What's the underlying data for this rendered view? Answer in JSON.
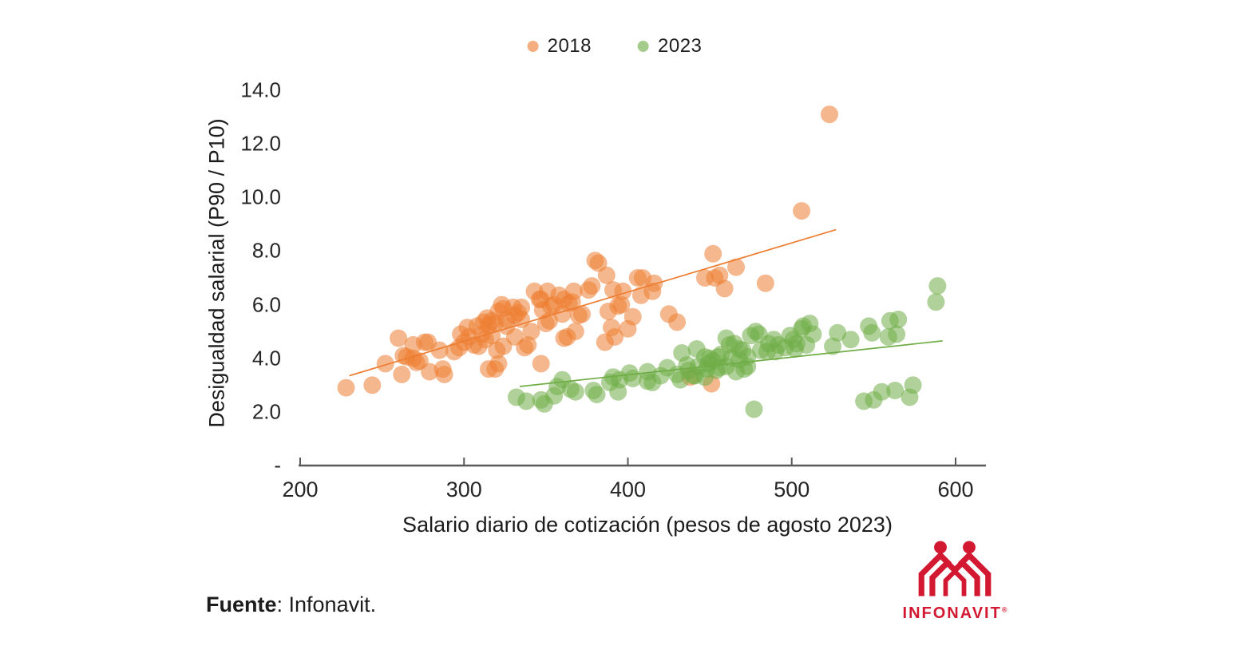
{
  "legend": {
    "items": [
      {
        "label": "2018",
        "color": "#ED7D31"
      },
      {
        "label": "2023",
        "color": "#70AD47"
      }
    ]
  },
  "chart_data": {
    "type": "scatter",
    "title": "",
    "xlabel": "Salario diario de cotización (pesos de agosto 2023)",
    "ylabel": "Desigualdad salarial (P90 / P10)",
    "xlim": [
      200,
      620
    ],
    "ylim": [
      0,
      14
    ],
    "grid": false,
    "legend_position": "top-center",
    "x_ticks": [
      {
        "label": "200",
        "value": 200
      },
      {
        "label": "300",
        "value": 300
      },
      {
        "label": "400",
        "value": 400
      },
      {
        "label": "500",
        "value": 500
      },
      {
        "label": "600",
        "value": 600
      }
    ],
    "y_ticks": [
      {
        "label": "14.0",
        "value": 14
      },
      {
        "label": "12.0",
        "value": 12
      },
      {
        "label": "10.0",
        "value": 10
      },
      {
        "label": "8.0",
        "value": 8
      },
      {
        "label": "6.0",
        "value": 6
      },
      {
        "label": "4.0",
        "value": 4
      },
      {
        "label": "2.0",
        "value": 2
      },
      {
        "label": "-",
        "value": 0
      }
    ],
    "series": [
      {
        "name": "2018",
        "color": "#ED7D31",
        "marker_opacity": 0.55,
        "trendline": {
          "x1": 230,
          "y1": 3.35,
          "x2": 527,
          "y2": 8.8
        },
        "points": [
          [
            228,
            2.9
          ],
          [
            244,
            3.0
          ],
          [
            252,
            3.8
          ],
          [
            260,
            4.75
          ],
          [
            262,
            3.4
          ],
          [
            263,
            4.1
          ],
          [
            265,
            4.05
          ],
          [
            269,
            4.5
          ],
          [
            269,
            4.0
          ],
          [
            271,
            3.85
          ],
          [
            273,
            3.9
          ],
          [
            276,
            4.6
          ],
          [
            278,
            4.6
          ],
          [
            279,
            3.5
          ],
          [
            285,
            4.3
          ],
          [
            287,
            3.6
          ],
          [
            288,
            3.4
          ],
          [
            294,
            4.25
          ],
          [
            297,
            4.4
          ],
          [
            298,
            4.9
          ],
          [
            300,
            4.6
          ],
          [
            302,
            5.15
          ],
          [
            303,
            4.8
          ],
          [
            306,
            4.5
          ],
          [
            308,
            5.2
          ],
          [
            309,
            4.45
          ],
          [
            311,
            4.9
          ],
          [
            312,
            5.35
          ],
          [
            313,
            4.7
          ],
          [
            314,
            5.5
          ],
          [
            315,
            3.6
          ],
          [
            315,
            5.25
          ],
          [
            317,
            5.4
          ],
          [
            317,
            4.85
          ],
          [
            319,
            5.3
          ],
          [
            319,
            3.6
          ],
          [
            320,
            4.3
          ],
          [
            321,
            5.75
          ],
          [
            321,
            3.8
          ],
          [
            323,
            6.0
          ],
          [
            324,
            5.85
          ],
          [
            324,
            4.45
          ],
          [
            326,
            5.45
          ],
          [
            326,
            5.2
          ],
          [
            330,
            5.9
          ],
          [
            331,
            5.6
          ],
          [
            331,
            4.8
          ],
          [
            333,
            5.7
          ],
          [
            335,
            5.9
          ],
          [
            335,
            5.45
          ],
          [
            337,
            4.4
          ],
          [
            339,
            4.5
          ],
          [
            341,
            5.0
          ],
          [
            343,
            6.5
          ],
          [
            346,
            6.2
          ],
          [
            347,
            6.2
          ],
          [
            347,
            3.8
          ],
          [
            348,
            5.8
          ],
          [
            350,
            5.3
          ],
          [
            351,
            6.5
          ],
          [
            352,
            5.4
          ],
          [
            353,
            5.95
          ],
          [
            355,
            6.0
          ],
          [
            358,
            6.35
          ],
          [
            360,
            5.65
          ],
          [
            361,
            6.2
          ],
          [
            361,
            4.75
          ],
          [
            363,
            4.8
          ],
          [
            364,
            6.05
          ],
          [
            366,
            6.1
          ],
          [
            367,
            6.5
          ],
          [
            368,
            5.0
          ],
          [
            370,
            5.6
          ],
          [
            372,
            5.65
          ],
          [
            376,
            6.55
          ],
          [
            378,
            6.7
          ],
          [
            380,
            7.65
          ],
          [
            382,
            7.55
          ],
          [
            386,
            4.6
          ],
          [
            387,
            7.1
          ],
          [
            388,
            5.75
          ],
          [
            390,
            5.15
          ],
          [
            391,
            6.55
          ],
          [
            392,
            4.8
          ],
          [
            394,
            5.95
          ],
          [
            396,
            6.0
          ],
          [
            397,
            6.5
          ],
          [
            400,
            5.1
          ],
          [
            403,
            5.55
          ],
          [
            406,
            7.0
          ],
          [
            408,
            6.35
          ],
          [
            409,
            7.0
          ],
          [
            415,
            6.5
          ],
          [
            416,
            6.8
          ],
          [
            425,
            5.65
          ],
          [
            430,
            5.35
          ],
          [
            438,
            3.3
          ],
          [
            447,
            7.0
          ],
          [
            451,
            3.05
          ],
          [
            452,
            7.9
          ],
          [
            453,
            7.0
          ],
          [
            456,
            7.1
          ],
          [
            459,
            6.6
          ],
          [
            466,
            7.4
          ],
          [
            484,
            6.8
          ],
          [
            506,
            9.5
          ],
          [
            523,
            13.1
          ]
        ]
      },
      {
        "name": "2023",
        "color": "#70AD47",
        "marker_opacity": 0.55,
        "trendline": {
          "x1": 334,
          "y1": 2.95,
          "x2": 592,
          "y2": 4.65
        },
        "points": [
          [
            332,
            2.55
          ],
          [
            338,
            2.4
          ],
          [
            347,
            2.45
          ],
          [
            349,
            2.3
          ],
          [
            355,
            2.6
          ],
          [
            357,
            2.95
          ],
          [
            360,
            3.2
          ],
          [
            365,
            2.85
          ],
          [
            368,
            2.75
          ],
          [
            379,
            2.8
          ],
          [
            381,
            2.65
          ],
          [
            389,
            3.1
          ],
          [
            391,
            3.3
          ],
          [
            394,
            2.75
          ],
          [
            395,
            3.2
          ],
          [
            401,
            3.45
          ],
          [
            403,
            3.25
          ],
          [
            412,
            3.5
          ],
          [
            412,
            3.15
          ],
          [
            415,
            3.1
          ],
          [
            420,
            3.35
          ],
          [
            424,
            3.65
          ],
          [
            430,
            3.4
          ],
          [
            432,
            3.2
          ],
          [
            433,
            4.2
          ],
          [
            436,
            3.75
          ],
          [
            437,
            3.55
          ],
          [
            440,
            3.35
          ],
          [
            441,
            3.35
          ],
          [
            442,
            4.35
          ],
          [
            443,
            3.7
          ],
          [
            447,
            4.05
          ],
          [
            447,
            3.3
          ],
          [
            448,
            3.6
          ],
          [
            449,
            3.8
          ],
          [
            450,
            4.0
          ],
          [
            452,
            3.9
          ],
          [
            454,
            3.55
          ],
          [
            455,
            4.05
          ],
          [
            456,
            3.65
          ],
          [
            457,
            4.15
          ],
          [
            460,
            4.75
          ],
          [
            460,
            3.7
          ],
          [
            462,
            4.5
          ],
          [
            463,
            4.0
          ],
          [
            465,
            4.55
          ],
          [
            466,
            3.5
          ],
          [
            468,
            4.35
          ],
          [
            468,
            3.95
          ],
          [
            470,
            4.3
          ],
          [
            471,
            3.6
          ],
          [
            473,
            4.05
          ],
          [
            473,
            3.7
          ],
          [
            475,
            4.85
          ],
          [
            477,
            2.1
          ],
          [
            478,
            5.0
          ],
          [
            480,
            4.9
          ],
          [
            481,
            4.3
          ],
          [
            485,
            4.25
          ],
          [
            486,
            4.55
          ],
          [
            489,
            4.7
          ],
          [
            490,
            4.25
          ],
          [
            492,
            4.5
          ],
          [
            496,
            4.4
          ],
          [
            499,
            4.85
          ],
          [
            501,
            4.7
          ],
          [
            502,
            4.35
          ],
          [
            503,
            4.55
          ],
          [
            506,
            5.1
          ],
          [
            507,
            5.2
          ],
          [
            509,
            4.5
          ],
          [
            511,
            5.3
          ],
          [
            513,
            4.9
          ],
          [
            525,
            4.45
          ],
          [
            528,
            4.95
          ],
          [
            536,
            4.7
          ],
          [
            544,
            2.4
          ],
          [
            547,
            5.2
          ],
          [
            549,
            4.95
          ],
          [
            550,
            2.45
          ],
          [
            555,
            2.75
          ],
          [
            559,
            4.8
          ],
          [
            560,
            5.4
          ],
          [
            563,
            2.8
          ],
          [
            564,
            4.9
          ],
          [
            565,
            5.45
          ],
          [
            572,
            2.55
          ],
          [
            574,
            3.0
          ],
          [
            588,
            6.1
          ],
          [
            589,
            6.7
          ]
        ]
      }
    ]
  },
  "source": {
    "bold": "Fuente",
    "rest": ": Infonavit."
  },
  "logo": {
    "text": "INFONAVIT",
    "registered": "®",
    "color": "#D31832"
  }
}
